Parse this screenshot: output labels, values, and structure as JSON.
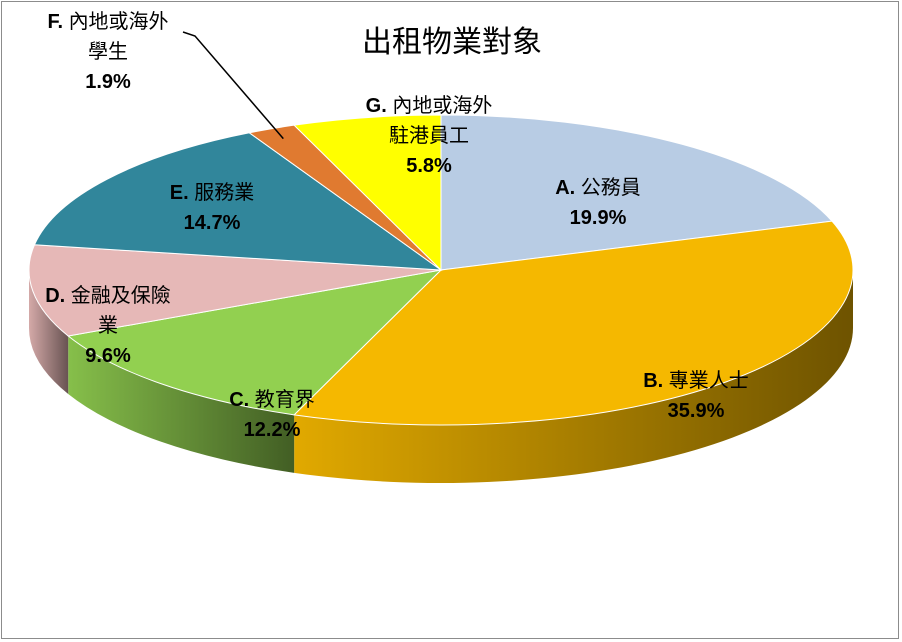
{
  "chart_data": {
    "type": "pie",
    "title": "出租物業對象",
    "categories": [
      "A. 公務員",
      "B. 專業人士",
      "C. 教育界",
      "D. 金融及保險業",
      "E. 服務業",
      "F. 內地或海外學生",
      "G. 內地或海外駐港員工"
    ],
    "values": [
      19.9,
      35.9,
      12.2,
      9.6,
      14.7,
      1.9,
      5.8
    ],
    "value_labels": [
      "19.9%",
      "35.9%",
      "12.2%",
      "9.6%",
      "14.7%",
      "1.9%",
      "5.8%"
    ],
    "colors": [
      "#b8cce4",
      "#f5b800",
      "#92d050",
      "#e6b8b7",
      "#31869b",
      "#e07a30",
      "#ffff00"
    ],
    "label_lines": [
      [
        "A. 公務員"
      ],
      [
        "B. 專業人士"
      ],
      [
        "C. 教育界"
      ],
      [
        "D. 金融及保險",
        "業"
      ],
      [
        "E. 服務業"
      ],
      [
        "F. 內地或海外",
        "學生"
      ],
      [
        "G. 內地或海外",
        "駐港員工"
      ]
    ],
    "three_d": true,
    "legend": "none",
    "start_angle": "12 o'clock, clockwise"
  }
}
